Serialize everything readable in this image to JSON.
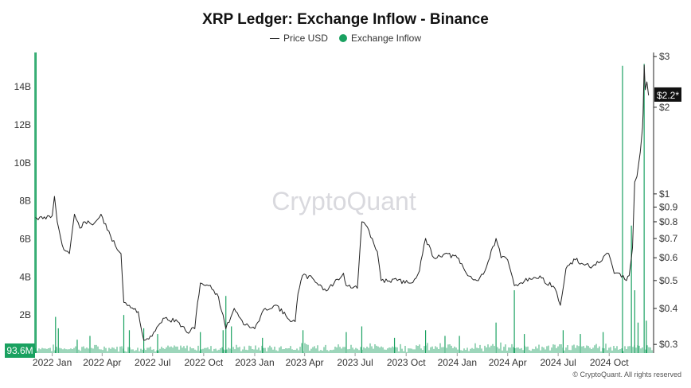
{
  "chart_data": {
    "type": "line",
    "title": "XRP Ledger: Exchange Inflow - Binance",
    "watermark": "CryptoQuant",
    "copyright": "© CryptoQuant. All rights reserved",
    "legend": {
      "placement": "top-center",
      "entries": [
        {
          "name": "Price USD",
          "color": "#222222",
          "style": "line"
        },
        {
          "name": "Exchange Inflow",
          "color": "#1aa160",
          "style": "dot"
        }
      ]
    },
    "x_ticks": [
      "2022 Jan",
      "2022 Apr",
      "2022 Jul",
      "2022 Oct",
      "2023 Jan",
      "2023 Apr",
      "2023 Jul",
      "2023 Oct",
      "2024 Jan",
      "2024 Apr",
      "2024 Jul",
      "2024 Oct"
    ],
    "x_range": [
      "2021-12-01",
      "2024-12-20"
    ],
    "left_axis": {
      "ticks": [
        "2B",
        "4B",
        "6B",
        "8B",
        "10B",
        "12B",
        "14B"
      ],
      "values_billion": [
        2,
        4,
        6,
        8,
        10,
        12,
        14
      ],
      "range_billion": [
        0,
        15.8
      ]
    },
    "right_axis": {
      "scale": "log",
      "ticks": [
        "$0.3",
        "$0.4",
        "$0.5",
        "$0.6",
        "$0.7",
        "$0.8",
        "$0.9",
        "$1",
        "$2",
        "$3"
      ],
      "values": [
        0.3,
        0.4,
        0.5,
        0.6,
        0.7,
        0.8,
        0.9,
        1,
        2,
        3
      ],
      "range": [
        0.28,
        3.1
      ]
    },
    "current_inflow_label": "93.6M",
    "current_price_label": "$2.2*",
    "current_price": 2.2,
    "grid": false,
    "series": [
      {
        "name": "Price USD",
        "axis": "right",
        "points": [
          [
            "2021-12-01",
            0.83
          ],
          [
            "2021-12-15",
            0.82
          ],
          [
            "2022-01-01",
            0.84
          ],
          [
            "2022-01-05",
            0.98
          ],
          [
            "2022-01-10",
            0.8
          ],
          [
            "2022-01-22",
            0.64
          ],
          [
            "2022-02-01",
            0.62
          ],
          [
            "2022-02-10",
            0.85
          ],
          [
            "2022-02-20",
            0.76
          ],
          [
            "2022-03-01",
            0.8
          ],
          [
            "2022-03-15",
            0.78
          ],
          [
            "2022-03-30",
            0.85
          ],
          [
            "2022-04-10",
            0.75
          ],
          [
            "2022-04-25",
            0.66
          ],
          [
            "2022-05-05",
            0.62
          ],
          [
            "2022-05-10",
            0.42
          ],
          [
            "2022-05-20",
            0.41
          ],
          [
            "2022-06-05",
            0.39
          ],
          [
            "2022-06-15",
            0.31
          ],
          [
            "2022-06-30",
            0.32
          ],
          [
            "2022-07-20",
            0.37
          ],
          [
            "2022-08-15",
            0.36
          ],
          [
            "2022-09-01",
            0.33
          ],
          [
            "2022-09-15",
            0.34
          ],
          [
            "2022-09-20",
            0.42
          ],
          [
            "2022-09-25",
            0.49
          ],
          [
            "2022-10-10",
            0.48
          ],
          [
            "2022-10-25",
            0.45
          ],
          [
            "2022-11-05",
            0.38
          ],
          [
            "2022-11-10",
            0.34
          ],
          [
            "2022-11-25",
            0.4
          ],
          [
            "2022-12-15",
            0.35
          ],
          [
            "2023-01-01",
            0.34
          ],
          [
            "2023-01-20",
            0.4
          ],
          [
            "2023-02-10",
            0.41
          ],
          [
            "2023-03-01",
            0.37
          ],
          [
            "2023-03-15",
            0.36
          ],
          [
            "2023-03-20",
            0.45
          ],
          [
            "2023-03-28",
            0.52
          ],
          [
            "2023-04-15",
            0.51
          ],
          [
            "2023-05-10",
            0.46
          ],
          [
            "2023-06-10",
            0.53
          ],
          [
            "2023-06-15",
            0.48
          ],
          [
            "2023-07-05",
            0.47
          ],
          [
            "2023-07-13",
            0.8
          ],
          [
            "2023-07-20",
            0.78
          ],
          [
            "2023-08-10",
            0.63
          ],
          [
            "2023-08-17",
            0.5
          ],
          [
            "2023-09-15",
            0.5
          ],
          [
            "2023-10-10",
            0.49
          ],
          [
            "2023-10-25",
            0.54
          ],
          [
            "2023-11-05",
            0.7
          ],
          [
            "2023-11-20",
            0.6
          ],
          [
            "2023-12-10",
            0.62
          ],
          [
            "2024-01-01",
            0.6
          ],
          [
            "2024-01-20",
            0.52
          ],
          [
            "2024-02-05",
            0.5
          ],
          [
            "2024-02-20",
            0.54
          ],
          [
            "2024-03-11",
            0.7
          ],
          [
            "2024-03-20",
            0.6
          ],
          [
            "2024-04-01",
            0.59
          ],
          [
            "2024-04-13",
            0.48
          ],
          [
            "2024-05-10",
            0.51
          ],
          [
            "2024-06-01",
            0.51
          ],
          [
            "2024-06-25",
            0.47
          ],
          [
            "2024-07-05",
            0.41
          ],
          [
            "2024-07-15",
            0.55
          ],
          [
            "2024-08-01",
            0.59
          ],
          [
            "2024-08-15",
            0.57
          ],
          [
            "2024-09-01",
            0.56
          ],
          [
            "2024-09-15",
            0.58
          ],
          [
            "2024-09-30",
            0.62
          ],
          [
            "2024-10-10",
            0.53
          ],
          [
            "2024-10-20",
            0.53
          ],
          [
            "2024-11-01",
            0.5
          ],
          [
            "2024-11-06",
            0.52
          ],
          [
            "2024-11-12",
            0.65
          ],
          [
            "2024-11-16",
            1.1
          ],
          [
            "2024-11-20",
            1.15
          ],
          [
            "2024-11-26",
            1.4
          ],
          [
            "2024-11-30",
            1.7
          ],
          [
            "2024-12-01",
            1.9
          ],
          [
            "2024-12-03",
            2.8
          ],
          [
            "2024-12-05",
            2.3
          ],
          [
            "2024-12-08",
            2.45
          ],
          [
            "2024-12-11",
            2.2
          ]
        ]
      },
      {
        "name": "Exchange Inflow",
        "axis": "left",
        "unit": "B",
        "baseline_billion": 0.09,
        "spikes": [
          [
            "2021-12-03",
            15.8
          ],
          [
            "2022-01-07",
            1.9
          ],
          [
            "2022-01-12",
            1.3
          ],
          [
            "2022-02-15",
            0.7
          ],
          [
            "2022-03-10",
            0.9
          ],
          [
            "2022-05-10",
            2.0
          ],
          [
            "2022-05-20",
            1.2
          ],
          [
            "2022-06-15",
            1.3
          ],
          [
            "2022-07-10",
            1.0
          ],
          [
            "2022-09-25",
            1.1
          ],
          [
            "2022-11-05",
            1.2
          ],
          [
            "2022-11-10",
            3.0
          ],
          [
            "2022-11-20",
            1.4
          ],
          [
            "2023-01-15",
            0.8
          ],
          [
            "2023-03-29",
            1.2
          ],
          [
            "2023-06-15",
            1.1
          ],
          [
            "2023-07-13",
            1.4
          ],
          [
            "2023-09-10",
            0.8
          ],
          [
            "2023-11-05",
            1.2
          ],
          [
            "2023-12-10",
            0.9
          ],
          [
            "2024-01-05",
            0.9
          ],
          [
            "2024-03-11",
            1.6
          ],
          [
            "2024-04-13",
            3.3
          ],
          [
            "2024-05-01",
            1.0
          ],
          [
            "2024-07-10",
            1.2
          ],
          [
            "2024-08-10",
            1.0
          ],
          [
            "2024-09-20",
            1.1
          ],
          [
            "2024-10-25",
            15.1
          ],
          [
            "2024-11-10",
            6.7
          ],
          [
            "2024-11-16",
            3.3
          ],
          [
            "2024-11-22",
            1.6
          ],
          [
            "2024-12-03",
            15.2
          ],
          [
            "2024-12-07",
            1.7
          ]
        ]
      }
    ]
  }
}
